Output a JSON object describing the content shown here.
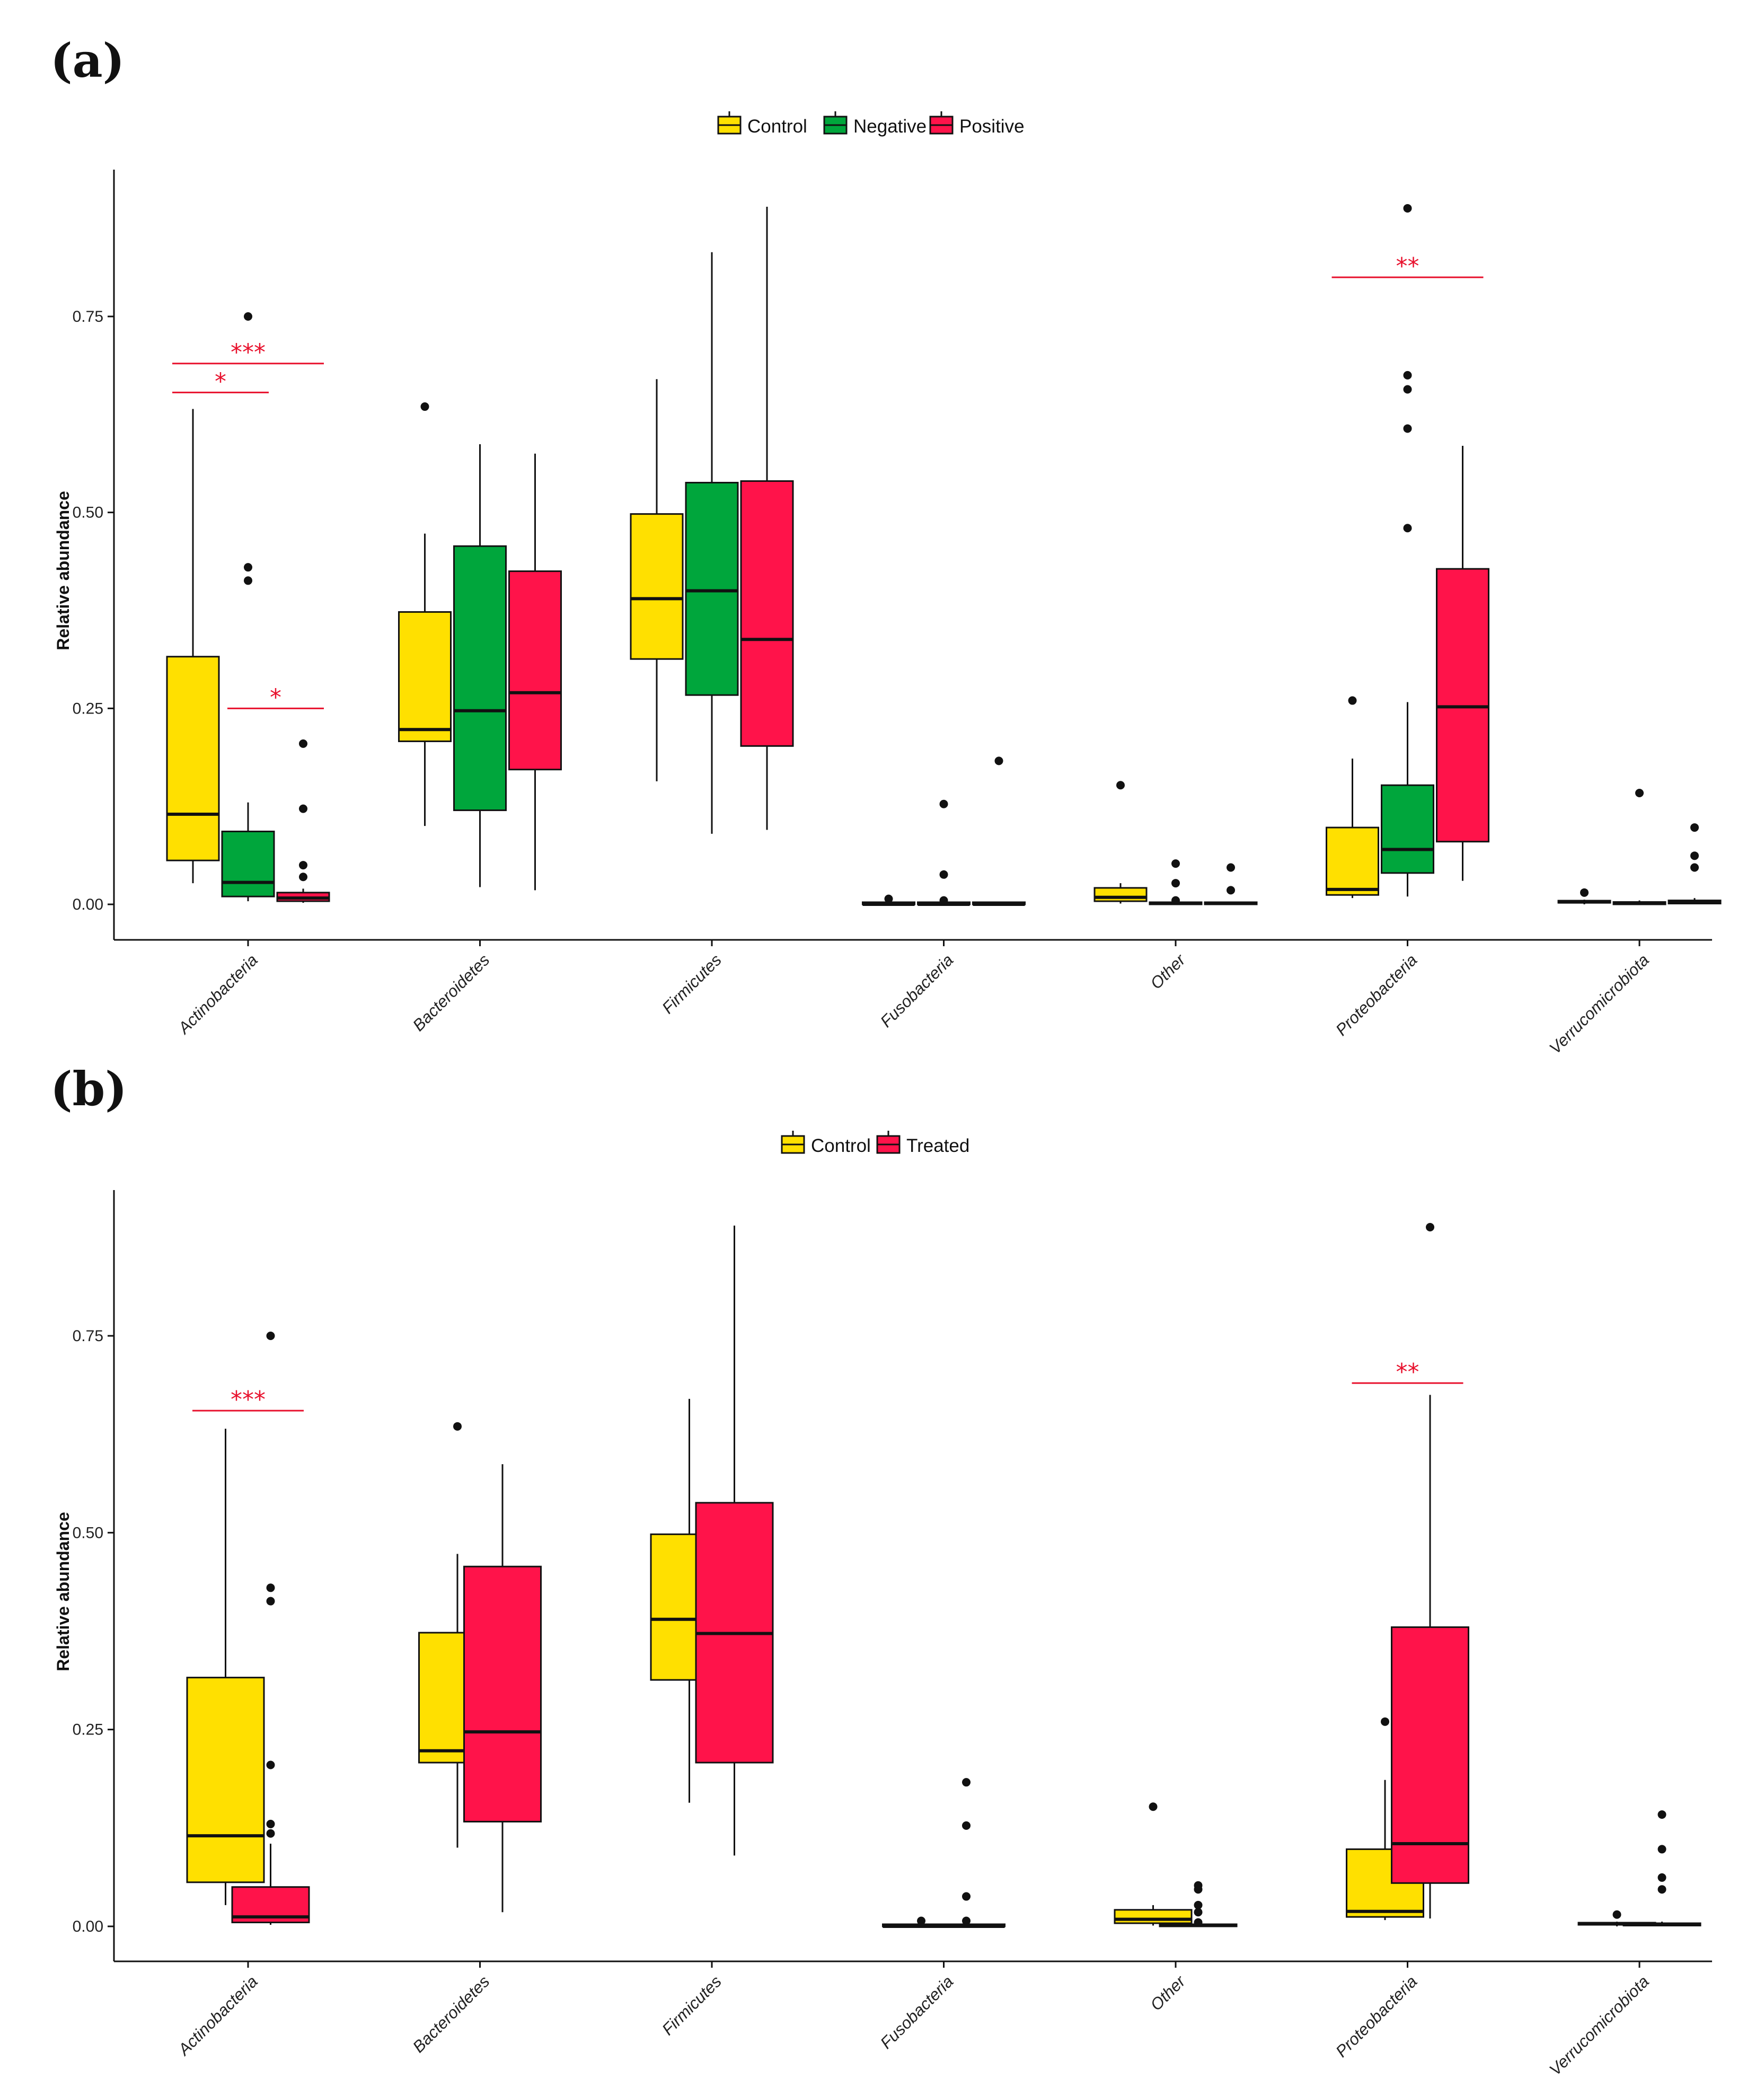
{
  "chart_data": [
    {
      "type": "boxplot",
      "panel_label": "(a)",
      "ylabel": "Relative abundance",
      "ylim": [
        -0.04,
        0.94
      ],
      "yticks": [
        0.0,
        0.25,
        0.5,
        0.75
      ],
      "ytick_labels": [
        "0.00",
        "0.25",
        "0.50",
        "0.75"
      ],
      "legend_position": "top",
      "categories": [
        "Actinobacteria",
        "Bacteroidetes",
        "Firmicutes",
        "Fusobacteria",
        "Other",
        "Proteobacteria",
        "Verrucomicrobiota"
      ],
      "groups": [
        {
          "name": "Control",
          "color": "#FFE000"
        },
        {
          "name": "Negative",
          "color": "#00A63C"
        },
        {
          "name": "Positive",
          "color": "#FF134A"
        }
      ],
      "boxes": [
        {
          "category": 0,
          "group": 0,
          "min": 0.027,
          "q1": 0.056,
          "median": 0.115,
          "q3": 0.316,
          "max": 0.632,
          "outliers": []
        },
        {
          "category": 0,
          "group": 1,
          "min": 0.004,
          "q1": 0.01,
          "median": 0.028,
          "q3": 0.093,
          "max": 0.13,
          "outliers": [
            0.413,
            0.43,
            0.75
          ]
        },
        {
          "category": 0,
          "group": 2,
          "min": 0.002,
          "q1": 0.004,
          "median": 0.008,
          "q3": 0.015,
          "max": 0.02,
          "outliers": [
            0.035,
            0.05,
            0.122,
            0.205
          ]
        },
        {
          "category": 1,
          "group": 0,
          "min": 0.1,
          "q1": 0.208,
          "median": 0.223,
          "q3": 0.373,
          "max": 0.473,
          "outliers": [
            0.635
          ]
        },
        {
          "category": 1,
          "group": 1,
          "min": 0.022,
          "q1": 0.12,
          "median": 0.247,
          "q3": 0.457,
          "max": 0.587,
          "outliers": []
        },
        {
          "category": 1,
          "group": 2,
          "min": 0.018,
          "q1": 0.172,
          "median": 0.27,
          "q3": 0.425,
          "max": 0.575,
          "outliers": []
        },
        {
          "category": 2,
          "group": 0,
          "min": 0.157,
          "q1": 0.313,
          "median": 0.39,
          "q3": 0.498,
          "max": 0.67,
          "outliers": []
        },
        {
          "category": 2,
          "group": 1,
          "min": 0.09,
          "q1": 0.267,
          "median": 0.4,
          "q3": 0.538,
          "max": 0.832,
          "outliers": []
        },
        {
          "category": 2,
          "group": 2,
          "min": 0.095,
          "q1": 0.202,
          "median": 0.338,
          "q3": 0.54,
          "max": 0.89,
          "outliers": []
        },
        {
          "category": 3,
          "group": 0,
          "min": 0.0,
          "q1": 0.0,
          "median": 0.0,
          "q3": 0.001,
          "max": 0.002,
          "outliers": [
            0.007
          ]
        },
        {
          "category": 3,
          "group": 1,
          "min": 0.0,
          "q1": 0.0,
          "median": 0.0,
          "q3": 0.001,
          "max": 0.002,
          "outliers": [
            0.005,
            0.038,
            0.128
          ]
        },
        {
          "category": 3,
          "group": 2,
          "min": 0.0,
          "q1": 0.0,
          "median": 0.0,
          "q3": 0.001,
          "max": 0.002,
          "outliers": [
            0.183
          ]
        },
        {
          "category": 4,
          "group": 0,
          "min": 0.001,
          "q1": 0.004,
          "median": 0.009,
          "q3": 0.021,
          "max": 0.027,
          "outliers": [
            0.152
          ]
        },
        {
          "category": 4,
          "group": 1,
          "min": 0.0,
          "q1": 0.0,
          "median": 0.001,
          "q3": 0.002,
          "max": 0.003,
          "outliers": [
            0.005,
            0.027,
            0.052
          ]
        },
        {
          "category": 4,
          "group": 2,
          "min": 0.0,
          "q1": 0.0,
          "median": 0.001,
          "q3": 0.002,
          "max": 0.003,
          "outliers": [
            0.018,
            0.047
          ]
        },
        {
          "category": 5,
          "group": 0,
          "min": 0.008,
          "q1": 0.012,
          "median": 0.019,
          "q3": 0.098,
          "max": 0.186,
          "outliers": [
            0.26
          ]
        },
        {
          "category": 5,
          "group": 1,
          "min": 0.01,
          "q1": 0.04,
          "median": 0.07,
          "q3": 0.152,
          "max": 0.258,
          "outliers": [
            0.48,
            0.607,
            0.657,
            0.675,
            0.888
          ]
        },
        {
          "category": 5,
          "group": 2,
          "min": 0.03,
          "q1": 0.08,
          "median": 0.252,
          "q3": 0.428,
          "max": 0.585,
          "outliers": []
        },
        {
          "category": 6,
          "group": 0,
          "min": 0.0,
          "q1": 0.002,
          "median": 0.003,
          "q3": 0.004,
          "max": 0.006,
          "outliers": [
            0.015
          ]
        },
        {
          "category": 6,
          "group": 1,
          "min": 0.0,
          "q1": 0.0,
          "median": 0.001,
          "q3": 0.003,
          "max": 0.005,
          "outliers": [
            0.142
          ]
        },
        {
          "category": 6,
          "group": 2,
          "min": 0.0,
          "q1": 0.001,
          "median": 0.003,
          "q3": 0.005,
          "max": 0.008,
          "outliers": [
            0.047,
            0.062,
            0.098
          ]
        }
      ],
      "significance": [
        {
          "category": 0,
          "from_group": 0,
          "to_group": 1,
          "y": 0.653,
          "label": "*"
        },
        {
          "category": 0,
          "from_group": 0,
          "to_group": 2,
          "y": 0.69,
          "label": "***"
        },
        {
          "category": 0,
          "from_group": 1,
          "to_group": 2,
          "y": 0.25,
          "label": "*"
        },
        {
          "category": 5,
          "from_group": 0,
          "to_group": 2,
          "y": 0.8,
          "label": "**"
        }
      ]
    },
    {
      "type": "boxplot",
      "panel_label": "(b)",
      "ylabel": "Relative abundance",
      "ylim": [
        -0.04,
        0.94
      ],
      "yticks": [
        0.0,
        0.25,
        0.5,
        0.75
      ],
      "ytick_labels": [
        "0.00",
        "0.25",
        "0.50",
        "0.75"
      ],
      "legend_position": "top",
      "categories": [
        "Actinobacteria",
        "Bacteroidetes",
        "Firmicutes",
        "Fusobacteria",
        "Other",
        "Proteobacteria",
        "Verrucomicrobiota"
      ],
      "groups": [
        {
          "name": "Control",
          "color": "#FFE000"
        },
        {
          "name": "Treated",
          "color": "#FF134A"
        }
      ],
      "boxes": [
        {
          "category": 0,
          "group": 0,
          "min": 0.027,
          "q1": 0.056,
          "median": 0.115,
          "q3": 0.316,
          "max": 0.632,
          "outliers": []
        },
        {
          "category": 0,
          "group": 1,
          "min": 0.002,
          "q1": 0.005,
          "median": 0.012,
          "q3": 0.05,
          "max": 0.105,
          "outliers": [
            0.118,
            0.13,
            0.205,
            0.413,
            0.43,
            0.75
          ]
        },
        {
          "category": 1,
          "group": 0,
          "min": 0.1,
          "q1": 0.208,
          "median": 0.223,
          "q3": 0.373,
          "max": 0.473,
          "outliers": [
            0.635
          ]
        },
        {
          "category": 1,
          "group": 1,
          "min": 0.018,
          "q1": 0.133,
          "median": 0.247,
          "q3": 0.457,
          "max": 0.587,
          "outliers": []
        },
        {
          "category": 2,
          "group": 0,
          "min": 0.157,
          "q1": 0.313,
          "median": 0.39,
          "q3": 0.498,
          "max": 0.67,
          "outliers": []
        },
        {
          "category": 2,
          "group": 1,
          "min": 0.09,
          "q1": 0.208,
          "median": 0.372,
          "q3": 0.538,
          "max": 0.89,
          "outliers": []
        },
        {
          "category": 3,
          "group": 0,
          "min": 0.0,
          "q1": 0.0,
          "median": 0.0,
          "q3": 0.001,
          "max": 0.002,
          "outliers": [
            0.007
          ]
        },
        {
          "category": 3,
          "group": 1,
          "min": 0.0,
          "q1": 0.0,
          "median": 0.0,
          "q3": 0.001,
          "max": 0.002,
          "outliers": [
            0.007,
            0.038,
            0.128,
            0.183
          ]
        },
        {
          "category": 4,
          "group": 0,
          "min": 0.001,
          "q1": 0.004,
          "median": 0.009,
          "q3": 0.021,
          "max": 0.027,
          "outliers": [
            0.152
          ]
        },
        {
          "category": 4,
          "group": 1,
          "min": 0.0,
          "q1": 0.0,
          "median": 0.001,
          "q3": 0.002,
          "max": 0.003,
          "outliers": [
            0.005,
            0.018,
            0.027,
            0.047,
            0.052
          ]
        },
        {
          "category": 5,
          "group": 0,
          "min": 0.008,
          "q1": 0.012,
          "median": 0.019,
          "q3": 0.098,
          "max": 0.186,
          "outliers": [
            0.26
          ]
        },
        {
          "category": 5,
          "group": 1,
          "min": 0.01,
          "q1": 0.055,
          "median": 0.105,
          "q3": 0.38,
          "max": 0.675,
          "outliers": [
            0.888
          ]
        },
        {
          "category": 6,
          "group": 0,
          "min": 0.0,
          "q1": 0.002,
          "median": 0.003,
          "q3": 0.004,
          "max": 0.006,
          "outliers": [
            0.015
          ]
        },
        {
          "category": 6,
          "group": 1,
          "min": 0.0,
          "q1": 0.001,
          "median": 0.002,
          "q3": 0.004,
          "max": 0.006,
          "outliers": [
            0.047,
            0.062,
            0.098,
            0.142
          ]
        }
      ],
      "significance": [
        {
          "category": 0,
          "from_group": 0,
          "to_group": 1,
          "y": 0.655,
          "label": "***"
        },
        {
          "category": 5,
          "from_group": 0,
          "to_group": 1,
          "y": 0.69,
          "label": "**"
        }
      ]
    }
  ]
}
